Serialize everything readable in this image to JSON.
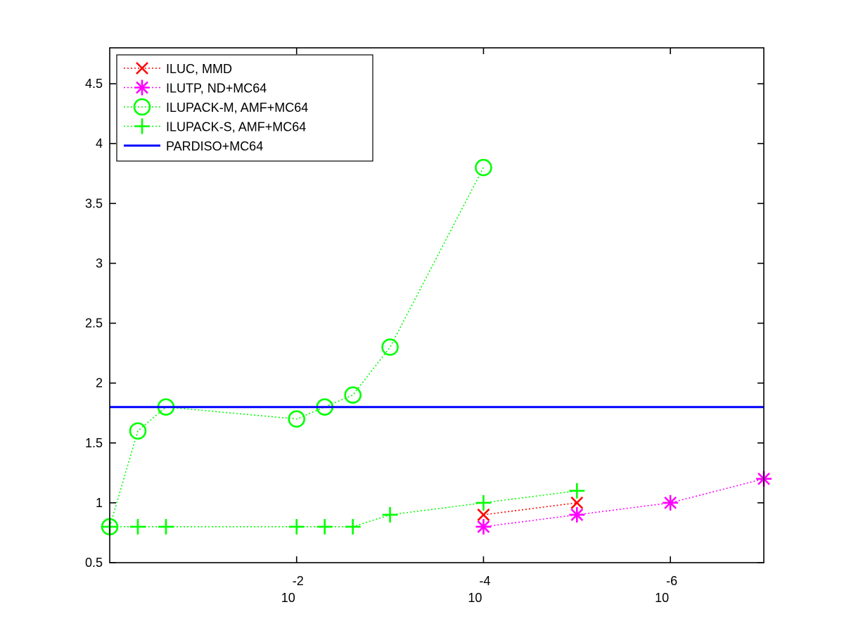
{
  "chart_data": {
    "type": "line",
    "title": "",
    "xlabel": "",
    "ylabel": "",
    "x_scale": "log",
    "x_reversed": true,
    "xlim": [
      1,
      1e-07
    ],
    "ylim": [
      0.5,
      4.8
    ],
    "grid": false,
    "legend_position": "top-left",
    "x_ticks": [
      {
        "value": 0.01,
        "base": "10",
        "exponent": "-2"
      },
      {
        "value": 0.0001,
        "base": "10",
        "exponent": "-4"
      },
      {
        "value": 1e-06,
        "base": "10",
        "exponent": "-6"
      }
    ],
    "y_ticks": [
      {
        "value": 0.5,
        "label": "0.5"
      },
      {
        "value": 1,
        "label": "1"
      },
      {
        "value": 1.5,
        "label": "1.5"
      },
      {
        "value": 2,
        "label": "2"
      },
      {
        "value": 2.5,
        "label": "2.5"
      },
      {
        "value": 3,
        "label": "3"
      },
      {
        "value": 3.5,
        "label": "3.5"
      },
      {
        "value": 4,
        "label": "4"
      },
      {
        "value": 4.5,
        "label": "4.5"
      }
    ],
    "series": [
      {
        "name": "ILUC, MMD",
        "color": "#ff0000",
        "marker": "x",
        "line": "dotted",
        "x": [
          0.0001,
          1e-05
        ],
        "y": [
          0.9,
          1.0
        ]
      },
      {
        "name": "ILUTP,  ND+MC64",
        "color": "#ff00ff",
        "marker": "asterisk",
        "line": "dotted",
        "x": [
          0.0001,
          1e-05,
          1e-06,
          1e-07
        ],
        "y": [
          0.8,
          0.9,
          1.0,
          1.2
        ]
      },
      {
        "name": "ILUPACK-M, AMF+MC64",
        "color": "#00ff00",
        "marker": "circle",
        "line": "dotted",
        "x": [
          1,
          0.5,
          0.25,
          0.01,
          0.005,
          0.0025,
          0.001,
          0.0001
        ],
        "y": [
          0.8,
          1.6,
          1.8,
          1.7,
          1.8,
          1.9,
          2.3,
          3.8
        ]
      },
      {
        "name": "ILUPACK-S, AMF+MC64",
        "color": "#00ff00",
        "marker": "plus",
        "line": "dotted",
        "x": [
          1,
          0.5,
          0.25,
          0.01,
          0.005,
          0.0025,
          0.001,
          0.0001,
          1e-05
        ],
        "y": [
          0.8,
          0.8,
          0.8,
          0.8,
          0.8,
          0.8,
          0.9,
          1.0,
          1.1
        ]
      },
      {
        "name": "PARDISO+MC64",
        "color": "#0000ff",
        "marker": "none",
        "line": "solid",
        "x": [
          1,
          1e-07
        ],
        "y": [
          1.8,
          1.8
        ]
      }
    ]
  }
}
